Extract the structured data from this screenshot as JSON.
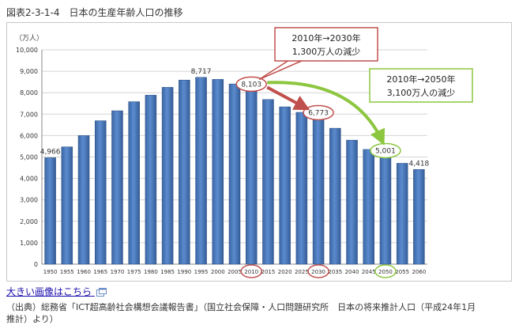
{
  "figure_title": "図表2-3-1-4　日本の生産年齢人口の推移",
  "link_label": "大きい画像はこちら",
  "source": "（出典）総務省「ICT超高齢社会構想会議報告書」（国立社会保障・人口問題研究所　日本の将来推計人口（平成24年1月推計）より）",
  "colors": {
    "bar": "#4a78b8",
    "bar_dark": "#2d4f84",
    "red_arrow": "#c0504d",
    "green_arrow": "#8cc63f",
    "callout_red_border": "#c0504d",
    "callout_green_border": "#8cc63f"
  },
  "chart_data": {
    "type": "bar",
    "unit_label": "（万人）",
    "categories": [
      "1950",
      "1955",
      "1960",
      "1965",
      "1970",
      "1975",
      "1980",
      "1985",
      "1990",
      "1995",
      "2000",
      "2005",
      "2010",
      "2015",
      "2020",
      "2025",
      "2030",
      "2035",
      "2040",
      "2045",
      "2050",
      "2055",
      "2060"
    ],
    "values": [
      4966,
      5473,
      6000,
      6693,
      7157,
      7581,
      7883,
      8251,
      8590,
      8717,
      8622,
      8409,
      8103,
      7682,
      7341,
      7084,
      6773,
      6343,
      5787,
      5353,
      5001,
      4706,
      4418
    ],
    "ylim": [
      0,
      10000
    ],
    "yticks": [
      "0",
      "1,000",
      "2,000",
      "3,000",
      "4,000",
      "5,000",
      "6,000",
      "7,000",
      "8,000",
      "9,000",
      "10,000"
    ],
    "grid": true,
    "data_labels": [
      {
        "index": 0,
        "text": "4,966"
      },
      {
        "index": 9,
        "text": "8,717"
      },
      {
        "index": 22,
        "text": "4,418"
      }
    ],
    "highlighted_values": [
      {
        "index": 12,
        "text": "8,103",
        "color": "red"
      },
      {
        "index": 16,
        "text": "6,773",
        "color": "red"
      },
      {
        "index": 20,
        "text": "5,001",
        "color": "green"
      }
    ],
    "highlighted_categories": [
      {
        "index": 12,
        "color": "red"
      },
      {
        "index": 16,
        "color": "red"
      },
      {
        "index": 20,
        "color": "green"
      }
    ],
    "annotations": [
      {
        "line1": "2010年→2030年",
        "line2": "1,300万人の減少",
        "color": "red"
      },
      {
        "line1": "2010年→2050年",
        "line2": "3,100万人の減少",
        "color": "green"
      }
    ]
  }
}
